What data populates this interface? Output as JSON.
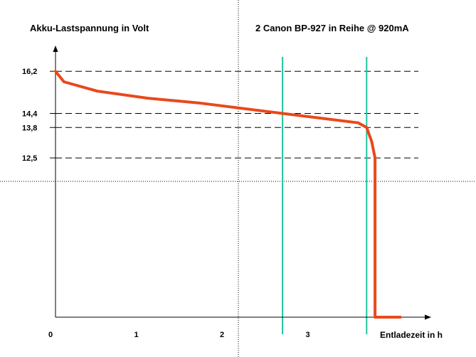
{
  "chart_data": {
    "type": "line",
    "title": "2 Canon BP-927 in Reihe @ 920mA",
    "ylabel": "Akku-Lastspannung in Volt",
    "xlabel": "Entladezeit in h",
    "x_ticks": [
      {
        "value": 0,
        "label": "0"
      },
      {
        "value": 1,
        "label": "1"
      },
      {
        "value": 2,
        "label": "2"
      },
      {
        "value": 3,
        "label": "3"
      }
    ],
    "y_ticks": [
      {
        "value": 16.2,
        "label": "16,2"
      },
      {
        "value": 14.4,
        "label": "14,4"
      },
      {
        "value": 13.8,
        "label": "13,8"
      },
      {
        "value": 12.5,
        "label": "12,5"
      }
    ],
    "reference_lines_y": [
      16.2,
      14.4,
      13.8,
      12.5
    ],
    "vertical_markers_x": [
      2.7,
      3.7
    ],
    "xlim": [
      0,
      4.4
    ],
    "ylim": [
      5.7,
      17.3
    ],
    "series": [
      {
        "color": "#e8491d",
        "points": [
          [
            0.0,
            16.2
          ],
          [
            0.1,
            15.75
          ],
          [
            0.5,
            15.35
          ],
          [
            1.1,
            15.05
          ],
          [
            1.7,
            14.85
          ],
          [
            2.7,
            14.4
          ],
          [
            3.6,
            14.0
          ],
          [
            3.7,
            13.8
          ],
          [
            3.76,
            13.2
          ],
          [
            3.8,
            12.5
          ],
          [
            3.8,
            5.7
          ],
          [
            4.1,
            5.7
          ]
        ]
      }
    ],
    "grid": false
  },
  "colors": {
    "curve": "#e8491d",
    "marker": "#1fc4a0",
    "axis": "#000000",
    "reference": "#000000",
    "crosshair": "#000000"
  }
}
